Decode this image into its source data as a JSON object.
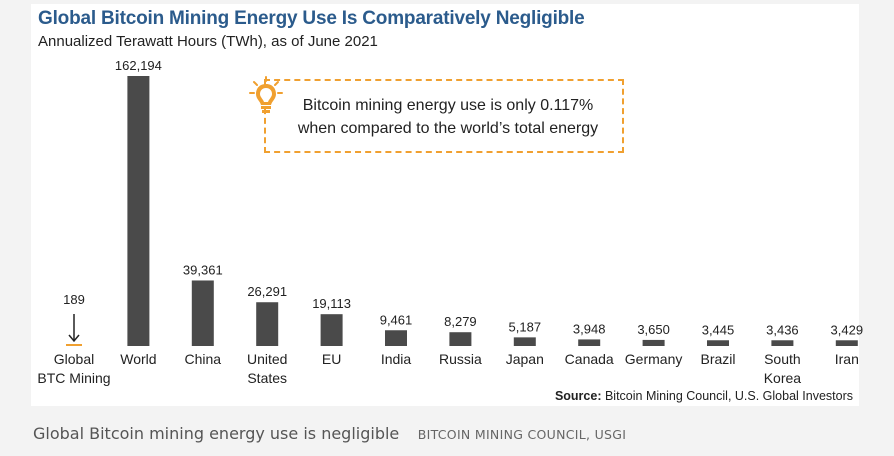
{
  "chart_data": {
    "type": "bar",
    "title": "Global Bitcoin Mining Energy Use Is Comparatively Negligible",
    "subtitle": "Annualized Terawatt Hours (TWh), as of June 2021",
    "categories": [
      [
        "Global",
        "BTC Mining"
      ],
      [
        "World"
      ],
      [
        "China"
      ],
      [
        "United",
        "States"
      ],
      [
        "EU"
      ],
      [
        "India"
      ],
      [
        "Russia"
      ],
      [
        "Japan"
      ],
      [
        "Canada"
      ],
      [
        "Germany"
      ],
      [
        "Brazil"
      ],
      [
        "South",
        "Korea"
      ],
      [
        "Iran"
      ]
    ],
    "values": [
      189,
      162194,
      39361,
      26291,
      19113,
      9461,
      8279,
      5187,
      3948,
      3650,
      3445,
      3436,
      3429
    ],
    "value_labels": [
      "189",
      "162,194",
      "39,361",
      "26,291",
      "19,113",
      "9,461",
      "8,279",
      "5,187",
      "3,948",
      "3,650",
      "3,445",
      "3,436",
      "3,429"
    ],
    "highlight_index": 0,
    "ylim": [
      0,
      162194
    ],
    "grid": false,
    "colors": {
      "bar": "#4a4a4a",
      "highlight": "#f0a030",
      "arrow": "#222222"
    }
  },
  "callout": {
    "text_line1": "Bitcoin mining energy use is only 0.117%",
    "text_line2": "when compared to the world’s total energy",
    "icon": "lightbulb-icon",
    "color": "#f0a030"
  },
  "source": {
    "label": "Source:",
    "text": "Bitcoin Mining Council, U.S. Global Investors"
  },
  "caption": {
    "main": "Global Bitcoin mining energy use is negligible",
    "credit": "BITCOIN MINING COUNCIL, USGI"
  }
}
